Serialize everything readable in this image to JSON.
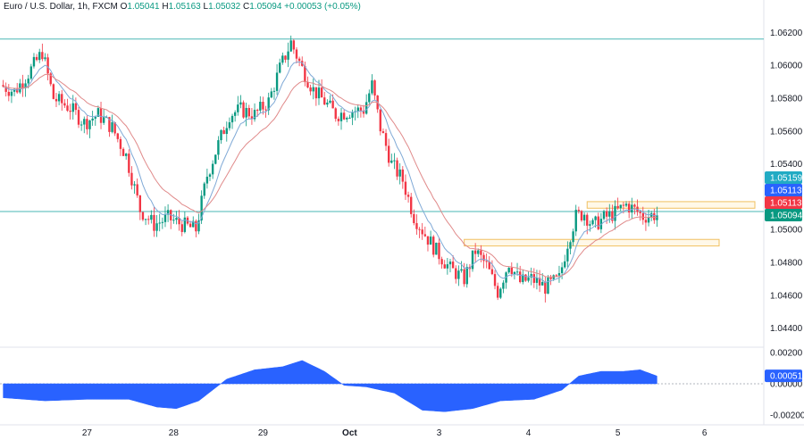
{
  "header": {
    "symbol": "Euro / U.S. Dollar, 1h, FXCM",
    "open_label": "O",
    "open": "1.05041",
    "high_label": "H",
    "high": "1.05163",
    "low_label": "L",
    "low": "1.05032",
    "close_label": "C",
    "close": "1.05094",
    "change": "+0.00053 (+0.05%)"
  },
  "colors": {
    "up": "#089981",
    "down": "#f23645",
    "ema_fast": "#7fa9d6",
    "ema_slow": "#e08a8a",
    "hline": "#4ab7b5",
    "zone_border": "#f0c060",
    "histogram": "#2962ff",
    "badge_cyan": "#22abc4",
    "badge_blue": "#2962ff",
    "badge_red": "#f23645",
    "badge_green": "#089981"
  },
  "chart_data": [
    {
      "type": "candlestick",
      "title": "Euro / U.S. Dollar, 1h, FXCM",
      "ylim": [
        1.043,
        1.063
      ],
      "y_ticks": [
        "1.06200",
        "1.06000",
        "1.05800",
        "1.05600",
        "1.05400",
        "1.05200",
        "1.05000",
        "1.04800",
        "1.04600",
        "1.04400"
      ],
      "x_ticks": [
        "27",
        "28",
        "29",
        "Oct",
        "3",
        "4",
        "5",
        "6"
      ],
      "horizontal_levels": [
        1.0616,
        1.0511
      ],
      "zones": [
        {
          "from": 1.0513,
          "to": 1.0517,
          "start_label": "5"
        },
        {
          "from": 1.049,
          "to": 1.0494,
          "start_label": "3"
        }
      ],
      "price_badges": [
        {
          "label": "1.05159",
          "value": 1.05159,
          "color": "cyan"
        },
        {
          "label": "1.05113",
          "value": 1.05113,
          "color": "blue"
        },
        {
          "label": "1.05113",
          "value": 1.05113,
          "color": "red"
        },
        {
          "label": "1.05094",
          "value": 1.05094,
          "color": "green"
        }
      ],
      "path_anchors": [
        [
          0,
          1.0588
        ],
        [
          5,
          1.0584
        ],
        [
          10,
          1.0595
        ],
        [
          15,
          1.0608
        ],
        [
          19,
          1.058
        ],
        [
          25,
          1.0574
        ],
        [
          30,
          1.0565
        ],
        [
          35,
          1.057
        ],
        [
          40,
          1.0562
        ],
        [
          45,
          1.0545
        ],
        [
          50,
          1.0512
        ],
        [
          55,
          1.0503
        ],
        [
          60,
          1.0507
        ],
        [
          65,
          1.0503
        ],
        [
          70,
          1.05
        ],
        [
          74,
          1.0533
        ],
        [
          78,
          1.0552
        ],
        [
          82,
          1.057
        ],
        [
          86,
          1.0573
        ],
        [
          91,
          1.057
        ],
        [
          96,
          1.0578
        ],
        [
          100,
          1.0598
        ],
        [
          104,
          1.0614
        ],
        [
          108,
          1.0598
        ],
        [
          112,
          1.0585
        ],
        [
          116,
          1.0578
        ],
        [
          120,
          1.057
        ],
        [
          125,
          1.0572
        ],
        [
          130,
          1.0573
        ],
        [
          133,
          1.0588
        ],
        [
          136,
          1.0562
        ],
        [
          140,
          1.054
        ],
        [
          144,
          1.053
        ],
        [
          148,
          1.0508
        ],
        [
          152,
          1.0497
        ],
        [
          156,
          1.0487
        ],
        [
          161,
          1.0476
        ],
        [
          166,
          1.047
        ],
        [
          170,
          1.0487
        ],
        [
          174,
          1.0478
        ],
        [
          178,
          1.0462
        ],
        [
          182,
          1.048
        ],
        [
          186,
          1.0468
        ],
        [
          190,
          1.047
        ],
        [
          195,
          1.0465
        ],
        [
          200,
          1.047
        ],
        [
          203,
          1.0492
        ],
        [
          206,
          1.0508
        ],
        [
          209,
          1.051
        ],
        [
          212,
          1.0502
        ],
        [
          216,
          1.0507
        ],
        [
          220,
          1.051
        ],
        [
          224,
          1.0515
        ],
        [
          227,
          1.0512
        ],
        [
          230,
          1.0508
        ],
        [
          234,
          1.0509
        ]
      ]
    },
    {
      "type": "area",
      "ylim": [
        -0.0023,
        0.0023
      ],
      "y_ticks": [
        "0.00200",
        "0.00000",
        "-0.00200"
      ],
      "value_badge": {
        "label": "0.00051",
        "value": 0.00051
      },
      "path_anchors": [
        [
          0,
          -0.0009
        ],
        [
          15,
          -0.0011
        ],
        [
          30,
          -0.001
        ],
        [
          45,
          -0.001
        ],
        [
          55,
          -0.0015
        ],
        [
          62,
          -0.0016
        ],
        [
          70,
          -0.0011
        ],
        [
          80,
          0.0003
        ],
        [
          90,
          0.0009
        ],
        [
          100,
          0.0011
        ],
        [
          107,
          0.0015
        ],
        [
          115,
          0.0008
        ],
        [
          122,
          -0.0001
        ],
        [
          130,
          -0.0002
        ],
        [
          140,
          -0.0006
        ],
        [
          150,
          -0.0017
        ],
        [
          158,
          -0.0018
        ],
        [
          168,
          -0.0016
        ],
        [
          178,
          -0.0011
        ],
        [
          190,
          -0.001
        ],
        [
          200,
          -0.0004
        ],
        [
          206,
          0.0005
        ],
        [
          214,
          0.0008
        ],
        [
          222,
          0.0008
        ],
        [
          228,
          0.0009
        ],
        [
          234,
          0.0005
        ]
      ]
    }
  ]
}
